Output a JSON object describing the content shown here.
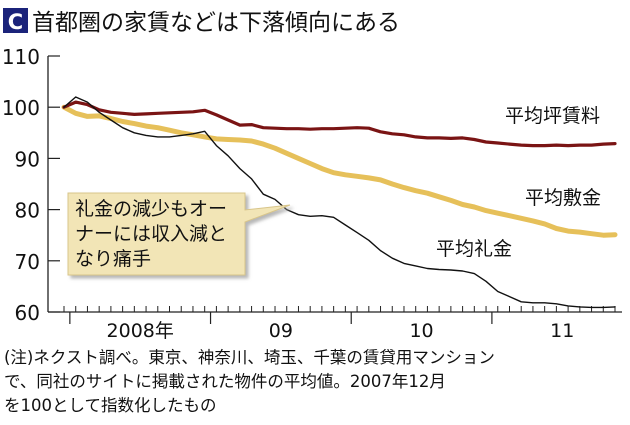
{
  "header": {
    "badge": "C",
    "title": "首都圏の家賃などは下落傾向にある"
  },
  "colors": {
    "badge": "#1b237a",
    "rent": "#7a1414",
    "deposit": "#e6c05a",
    "key_money": "#111111",
    "callout_bg": "#f2e5b6"
  },
  "callout": {
    "lines": [
      "礼金の減少もオー",
      "ナーには収入減と",
      "なり痛手"
    ]
  },
  "footnote": {
    "lines": [
      "(注)ネクスト調べ。東京、神奈川、埼玉、千葉の賃貸用マンション",
      "で、同社のサイトに掲載された物件の平均値。2007年12月",
      "を100として指数化したもの"
    ]
  },
  "chart_data": {
    "type": "line",
    "title": "首都圏の家賃などは下落傾向にある",
    "ylim": [
      60,
      110
    ],
    "yticks": [
      60,
      70,
      80,
      90,
      100,
      110
    ],
    "xtick_labels": [
      "2008年",
      "09",
      "10",
      "11"
    ],
    "grid": false,
    "x": [
      "2007-12",
      "2008-01",
      "2008-02",
      "2008-03",
      "2008-04",
      "2008-05",
      "2008-06",
      "2008-07",
      "2008-08",
      "2008-09",
      "2008-10",
      "2008-11",
      "2008-12",
      "2009-01",
      "2009-02",
      "2009-03",
      "2009-04",
      "2009-05",
      "2009-06",
      "2009-07",
      "2009-08",
      "2009-09",
      "2009-10",
      "2009-11",
      "2009-12",
      "2010-01",
      "2010-02",
      "2010-03",
      "2010-04",
      "2010-05",
      "2010-06",
      "2010-07",
      "2010-08",
      "2010-09",
      "2010-10",
      "2010-11",
      "2010-12",
      "2011-01",
      "2011-02",
      "2011-03",
      "2011-04",
      "2011-05",
      "2011-06",
      "2011-07",
      "2011-08",
      "2011-09",
      "2011-10",
      "2011-11"
    ],
    "series": [
      {
        "name": "平均坪賃料",
        "values": [
          100,
          101,
          100.5,
          99.5,
          99,
          98.8,
          98.6,
          98.7,
          98.8,
          98.9,
          99,
          99.1,
          99.4,
          98.5,
          97.5,
          96.5,
          96.6,
          96,
          95.9,
          95.8,
          95.8,
          95.7,
          95.8,
          95.8,
          95.9,
          96,
          95.9,
          95.2,
          94.8,
          94.6,
          94.2,
          94,
          94,
          93.9,
          94,
          93.7,
          93.2,
          93,
          92.8,
          92.6,
          92.5,
          92.5,
          92.6,
          92.5,
          92.6,
          92.6,
          92.8,
          92.9
        ]
      },
      {
        "name": "平均敷金",
        "values": [
          100,
          98.8,
          98.2,
          98.3,
          97.8,
          97.2,
          96.8,
          96.3,
          96,
          95.5,
          95,
          94.6,
          94.2,
          93.8,
          93.7,
          93.6,
          93.4,
          92.8,
          92,
          91,
          90,
          89,
          88,
          87.2,
          86.8,
          86.5,
          86.2,
          85.8,
          85,
          84.3,
          83.7,
          83.2,
          82.5,
          81.8,
          81,
          80.5,
          79.8,
          79.3,
          78.8,
          78.3,
          77.8,
          77.2,
          76.3,
          75.8,
          75.6,
          75.3,
          75,
          75.1
        ]
      },
      {
        "name": "平均礼金",
        "values": [
          100,
          102,
          101,
          99,
          97.5,
          96,
          95,
          94.5,
          94.2,
          94.2,
          94.5,
          94.8,
          95.3,
          92.5,
          90.5,
          88,
          86,
          83,
          82,
          80,
          79,
          78.7,
          78.8,
          78.5,
          77,
          75.5,
          74,
          72,
          70.5,
          69.5,
          69,
          68.5,
          68.3,
          68.2,
          68,
          67.5,
          66,
          64,
          63,
          62,
          61.8,
          61.8,
          61.6,
          61.2,
          61,
          60.9,
          60.9,
          61
        ]
      }
    ]
  }
}
